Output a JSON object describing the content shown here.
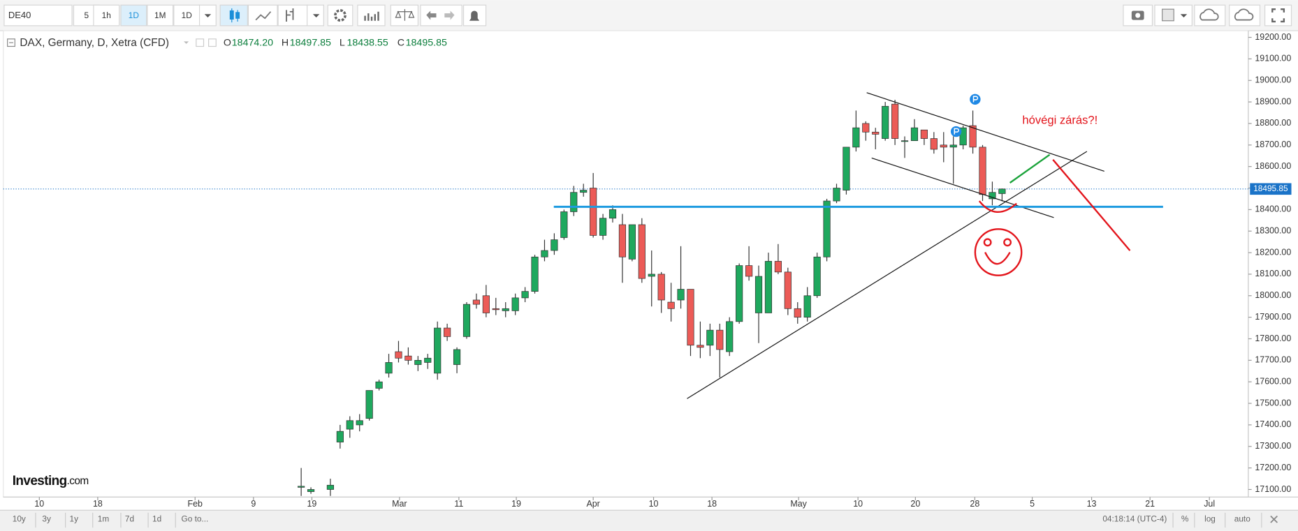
{
  "toolbar": {
    "symbol": "DE40",
    "intervals": [
      "5",
      "1h",
      "1D",
      "1M",
      "1D"
    ]
  },
  "header": {
    "instrument": "DAX, Germany, D, Xetra (CFD)",
    "open_label": "O",
    "open": "18474.20",
    "high_label": "H",
    "high": "18497.85",
    "low_label": "L",
    "low": "18438.55",
    "close_label": "C",
    "close": "18495.85"
  },
  "logo": {
    "brand": "Investing",
    "suffix": ".com"
  },
  "annotation": "hóvégi zárás?!",
  "footer": {
    "ranges": [
      "10y",
      "3y",
      "1y",
      "1m",
      "7d",
      "1d"
    ],
    "goto": "Go to...",
    "clock": "04:18:14 (UTC-4)",
    "percent": "%",
    "log": "log",
    "auto": "auto"
  },
  "chart_data": {
    "type": "candlestick",
    "up_color": "#1fa85e",
    "down_color": "#ec5b57",
    "x": [
      0,
      1,
      3,
      4,
      5,
      6,
      7,
      8,
      9,
      10,
      11,
      12,
      13,
      14,
      15,
      16,
      17,
      18,
      19,
      20,
      21,
      22,
      23,
      24,
      25,
      26,
      27,
      28,
      29,
      30,
      31,
      32,
      33,
      34,
      35,
      36,
      37,
      38,
      39,
      40,
      41,
      42,
      43,
      44,
      45,
      46,
      47,
      48,
      49,
      50,
      51,
      52,
      53,
      54,
      55,
      56,
      57,
      58,
      59,
      60,
      61,
      62,
      63,
      64,
      65,
      66,
      67,
      68,
      69,
      70,
      71,
      72
    ],
    "open": [
      17110,
      17090,
      17100,
      17320,
      17380,
      17400,
      17430,
      17570,
      17640,
      17740,
      17720,
      17680,
      17690,
      17640,
      17850,
      17680,
      17810,
      17980,
      18000,
      17940,
      17930,
      17930,
      17990,
      18020,
      18180,
      18210,
      18270,
      18390,
      18480,
      18500,
      18280,
      18360,
      18330,
      18170,
      18330,
      18090,
      18100,
      17970,
      17980,
      18030,
      17770,
      17770,
      17840,
      17740,
      17880,
      18140,
      17920,
      17920,
      18160,
      18110,
      17940,
      17900,
      18000,
      18180,
      18440,
      18490,
      18690,
      18800,
      18760,
      18730,
      18890,
      18720,
      18720,
      18770,
      18730,
      18700,
      18690,
      18700,
      18790,
      18690,
      18450,
      18474.2
    ],
    "high": [
      17200,
      17110,
      17150,
      17400,
      17440,
      17450,
      17560,
      17610,
      17730,
      17790,
      17760,
      17720,
      17730,
      17880,
      17870,
      17760,
      17970,
      18010,
      18050,
      17990,
      17970,
      18010,
      18040,
      18190,
      18260,
      18290,
      18400,
      18510,
      18520,
      18570,
      18380,
      18420,
      18380,
      18330,
      18360,
      18210,
      18110,
      18060,
      18230,
      18030,
      17880,
      17870,
      17870,
      17900,
      18150,
      18230,
      18140,
      18200,
      18240,
      18130,
      17970,
      18040,
      18200,
      18450,
      18520,
      18690,
      18860,
      18810,
      18780,
      18900,
      18910,
      18740,
      18820,
      18770,
      18760,
      18760,
      18740,
      18790,
      18860,
      18700,
      18530,
      18497.85
    ],
    "low": [
      17070,
      17080,
      17070,
      17290,
      17340,
      17370,
      17420,
      17560,
      17620,
      17690,
      17680,
      17650,
      17660,
      17610,
      17790,
      17640,
      17800,
      17940,
      17900,
      17910,
      17900,
      17910,
      17970,
      18010,
      18160,
      18190,
      18260,
      18370,
      18460,
      18270,
      18260,
      18340,
      18060,
      18160,
      18060,
      17950,
      17920,
      17880,
      17940,
      17720,
      17710,
      17720,
      17620,
      17720,
      17870,
      18070,
      17780,
      17920,
      18100,
      17910,
      17870,
      17880,
      17990,
      18160,
      18430,
      18470,
      18670,
      18720,
      18680,
      18720,
      18700,
      18640,
      18720,
      18700,
      18660,
      18620,
      18520,
      18680,
      18660,
      18440,
      18420,
      18438.55
    ],
    "close": [
      17115,
      17100,
      17120,
      17370,
      17420,
      17420,
      17560,
      17600,
      17690,
      17710,
      17700,
      17700,
      17710,
      17850,
      17810,
      17750,
      17960,
      17960,
      17920,
      17935,
      17940,
      17990,
      18020,
      18180,
      18210,
      18260,
      18390,
      18480,
      18490,
      18280,
      18360,
      18400,
      18180,
      18330,
      18080,
      18100,
      17980,
      17940,
      18030,
      17770,
      17760,
      17840,
      17750,
      17880,
      18140,
      18090,
      18090,
      18160,
      18110,
      17940,
      17900,
      18000,
      18180,
      18440,
      18500,
      18690,
      18780,
      18760,
      18750,
      18880,
      18730,
      18720,
      18780,
      18730,
      18680,
      18690,
      18700,
      18780,
      18690,
      18470,
      18480,
      18495.85
    ],
    "xlim": [
      -30.6,
      97.3
    ],
    "xticks": [
      {
        "value": -26.9,
        "label": "10"
      },
      {
        "value": -20.9,
        "label": "18"
      },
      {
        "value": -10.9,
        "label": "Feb"
      },
      {
        "value": -4.9,
        "label": "9"
      },
      {
        "value": 1.1,
        "label": "19"
      },
      {
        "value": 10.1,
        "label": "Mar"
      },
      {
        "value": 16.2,
        "label": "11"
      },
      {
        "value": 22.1,
        "label": "19"
      },
      {
        "value": 30.0,
        "label": "Apr"
      },
      {
        "value": 36.2,
        "label": "10"
      },
      {
        "value": 42.2,
        "label": "18"
      },
      {
        "value": 51.1,
        "label": "May"
      },
      {
        "value": 57.2,
        "label": "10"
      },
      {
        "value": 63.1,
        "label": "20"
      },
      {
        "value": 69.2,
        "label": "28"
      },
      {
        "value": 75.1,
        "label": "5"
      },
      {
        "value": 81.2,
        "label": "13"
      },
      {
        "value": 87.2,
        "label": "21"
      },
      {
        "value": 93.3,
        "label": "Jul"
      }
    ],
    "ylim": [
      17065,
      19231
    ],
    "yticks": [
      {
        "value": 17100,
        "label": "17100.00"
      },
      {
        "value": 17200,
        "label": "17200.00"
      },
      {
        "value": 17300,
        "label": "17300.00"
      },
      {
        "value": 17400,
        "label": "17400.00"
      },
      {
        "value": 17500,
        "label": "17500.00"
      },
      {
        "value": 17600,
        "label": "17600.00"
      },
      {
        "value": 17700,
        "label": "17700.00"
      },
      {
        "value": 17800,
        "label": "17800.00"
      },
      {
        "value": 17900,
        "label": "17900.00"
      },
      {
        "value": 18000,
        "label": "18000.00"
      },
      {
        "value": 18100,
        "label": "18100.00"
      },
      {
        "value": 18200,
        "label": "18200.00"
      },
      {
        "value": 18300,
        "label": "18300.00"
      },
      {
        "value": 18400,
        "label": "18400.00"
      },
      {
        "value": 18500,
        "label": "18500.00"
      },
      {
        "value": 18600,
        "label": "18600.00"
      },
      {
        "value": 18700,
        "label": "18700.00"
      },
      {
        "value": 18800,
        "label": "18800.00"
      },
      {
        "value": 18900,
        "label": "18900.00"
      },
      {
        "value": 19000,
        "label": "19000.00"
      },
      {
        "value": 19100,
        "label": "19100.00"
      },
      {
        "value": 19200,
        "label": "19200.00"
      }
    ],
    "last_price": 18495.85,
    "last_price_color": "#1a73c8"
  }
}
